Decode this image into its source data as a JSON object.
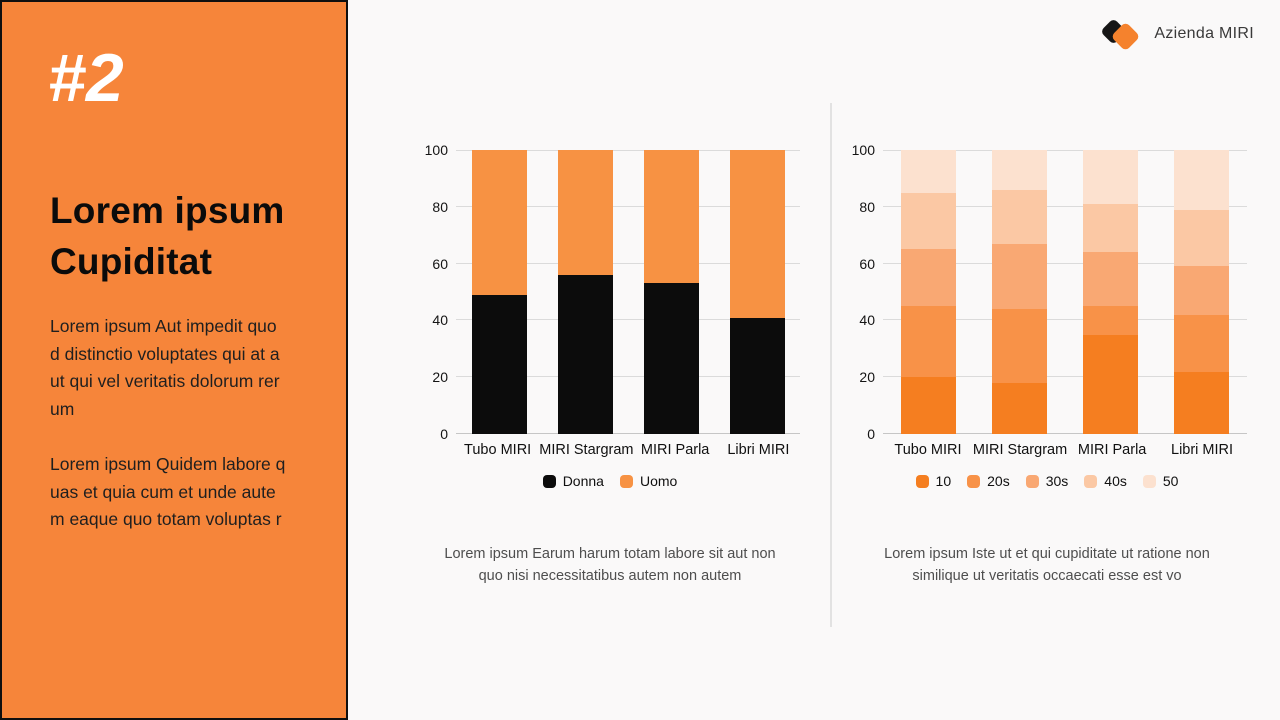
{
  "panel": {
    "number": "#2",
    "title_lines": [
      "Lorem ipsum",
      "Cupiditat"
    ],
    "paragraph1_lines": [
      "Lorem ipsum Aut impedit quo",
      "d distinctio voluptates qui at a",
      "ut qui vel veritatis dolorum rer",
      "um"
    ],
    "paragraph2_lines": [
      "Lorem ipsum Quidem labore q",
      "uas et quia cum et unde aute",
      "m eaque quo totam voluptas r"
    ],
    "background_color": "#F6853A",
    "border_color": "#0F0F0F"
  },
  "logo": {
    "text": "Azienda MIRI",
    "icon": "two-rotated-squares-icon",
    "icon_colors": {
      "back": "#161616",
      "front": "#F5822D"
    }
  },
  "colors": {
    "slide_background": "#FAF9F9",
    "gridline": "#DBDBDB",
    "zero_line": "#C6C6C6",
    "tick_text": "#141414",
    "caption_text": "#4E4E4E",
    "divider": "#E2E2E2"
  },
  "chart_data": [
    {
      "type": "bar",
      "stacked": true,
      "title": "",
      "xlabel": "",
      "ylabel": "",
      "ylim": [
        0,
        100
      ],
      "yticks": [
        0,
        20,
        40,
        60,
        80,
        100
      ],
      "grid": true,
      "legend_position": "bottom",
      "categories": [
        "Tubo MIRI",
        "MIRI Stargram",
        "MIRI Parla",
        "Libri MIRI"
      ],
      "series": [
        {
          "name": "Donna",
          "color": "#0C0C0C",
          "values": [
            49,
            56,
            53,
            41
          ]
        },
        {
          "name": "Uomo",
          "color": "#F79243",
          "values": [
            51,
            44,
            47,
            59
          ]
        }
      ],
      "caption_lines": [
        "Lorem ipsum Earum harum totam labore sit aut non",
        "quo nisi necessitatibus autem non autem"
      ]
    },
    {
      "type": "bar",
      "stacked": true,
      "title": "",
      "xlabel": "",
      "ylabel": "",
      "ylim": [
        0,
        100
      ],
      "yticks": [
        0,
        20,
        40,
        60,
        80,
        100
      ],
      "grid": true,
      "legend_position": "bottom",
      "categories": [
        "Tubo MIRI",
        "MIRI Stargram",
        "MIRI Parla",
        "Libri MIRI"
      ],
      "series": [
        {
          "name": "10",
          "color": "#F57E20",
          "values": [
            20,
            18,
            35,
            22
          ]
        },
        {
          "name": "20s",
          "color": "#F89248",
          "values": [
            25,
            26,
            10,
            20
          ]
        },
        {
          "name": "30s",
          "color": "#F9A873",
          "values": [
            20,
            23,
            19,
            17
          ]
        },
        {
          "name": "40s",
          "color": "#FBC8A4",
          "values": [
            20,
            19,
            17,
            20
          ]
        },
        {
          "name": "50",
          "color": "#FCE1CF",
          "values": [
            15,
            14,
            19,
            21
          ]
        }
      ],
      "caption_lines": [
        "Lorem ipsum Iste ut et qui cupiditate ut ratione non",
        "similique ut veritatis occaecati esse est vo"
      ]
    }
  ]
}
